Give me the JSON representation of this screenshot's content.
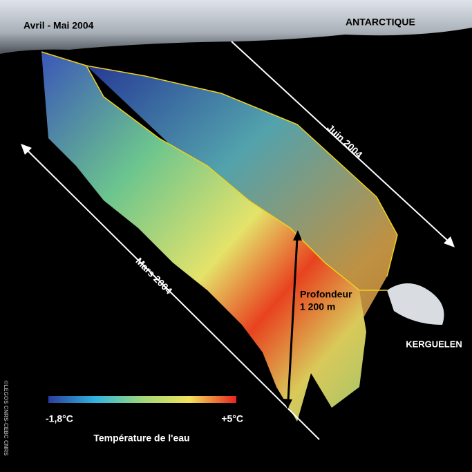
{
  "header": {
    "period": "Avril - Mai 2004",
    "region": "ANTARCTIQUE"
  },
  "tracks": {
    "june": "Juin 2004",
    "march": "Mars 2004"
  },
  "depth": {
    "label": "Profondeur",
    "value": "1 200 m"
  },
  "island": "KERGUELEN",
  "legend": {
    "min": "-1,8°C",
    "max": "+5°C",
    "title": "Température de l'eau"
  },
  "credit": "©LEGOS CNRS-CEBC CNRS"
}
